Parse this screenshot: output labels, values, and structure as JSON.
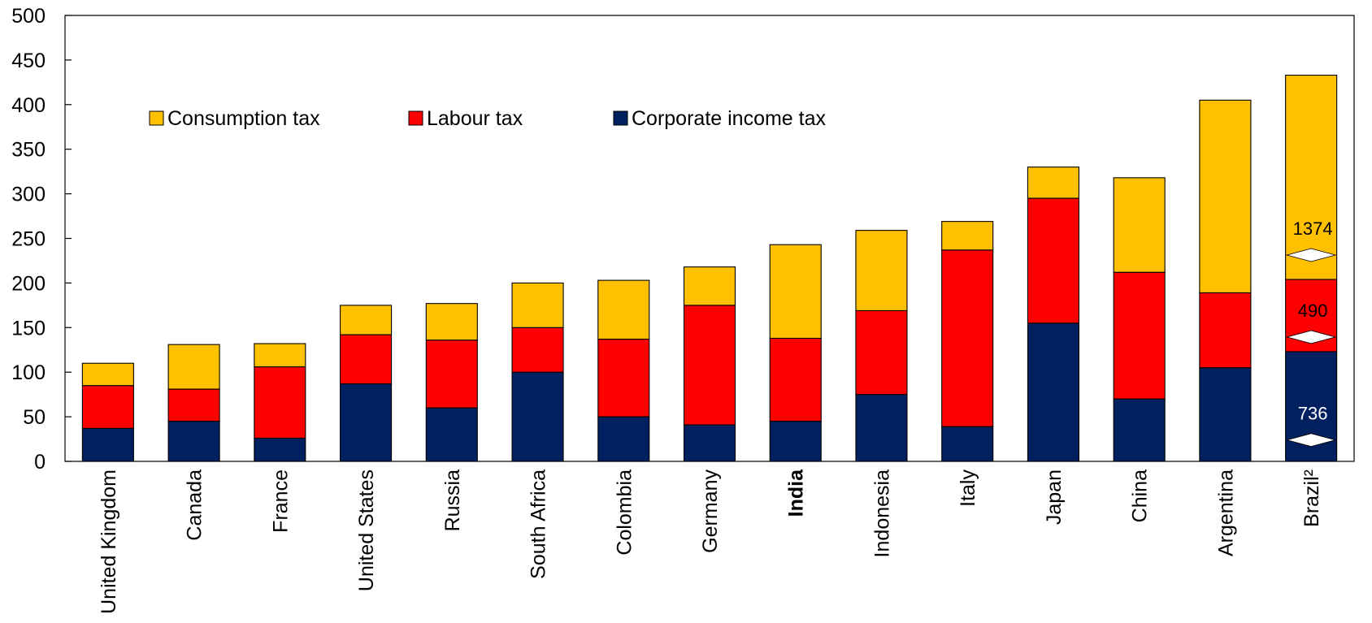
{
  "chart_data": {
    "type": "bar",
    "stacked": true,
    "title": "",
    "xlabel": "",
    "ylabel": "",
    "ylim": [
      0,
      500
    ],
    "yticks": [
      0,
      50,
      100,
      150,
      200,
      250,
      300,
      350,
      400,
      450,
      500
    ],
    "grid": false,
    "legend_position": "top-left",
    "categories": [
      "United Kingdom",
      "Canada",
      "France",
      "United States",
      "Russia",
      "South Africa",
      "Colombia",
      "Germany",
      "India",
      "Indonesia",
      "Italy",
      "Japan",
      "China",
      "Argentina",
      "Brazil²"
    ],
    "bold_categories": [
      "India"
    ],
    "series": [
      {
        "name": "Corporate income tax",
        "color": "#002060",
        "values": [
          37,
          45,
          26,
          87,
          60,
          100,
          50,
          41,
          45,
          75,
          39,
          155,
          70,
          105,
          123
        ]
      },
      {
        "name": "Labour tax",
        "color": "#FF0000",
        "values": [
          48,
          36,
          80,
          55,
          76,
          50,
          87,
          134,
          93,
          94,
          198,
          140,
          142,
          84,
          81
        ]
      },
      {
        "name": "Consumption tax",
        "color": "#FFC000",
        "values": [
          25,
          50,
          26,
          33,
          41,
          50,
          66,
          43,
          105,
          90,
          32,
          35,
          106,
          216,
          229
        ]
      }
    ],
    "legend_order": [
      "Consumption tax",
      "Labour tax",
      "Corporate income tax"
    ],
    "annotations": [
      {
        "category": "Brazil²",
        "series": "Consumption tax",
        "label": "1374",
        "label_color": "#000000"
      },
      {
        "category": "Brazil²",
        "series": "Labour tax",
        "label": "490",
        "label_color": "#000000"
      },
      {
        "category": "Brazil²",
        "series": "Corporate income tax",
        "label": "736",
        "label_color": "#ffffff"
      }
    ]
  }
}
